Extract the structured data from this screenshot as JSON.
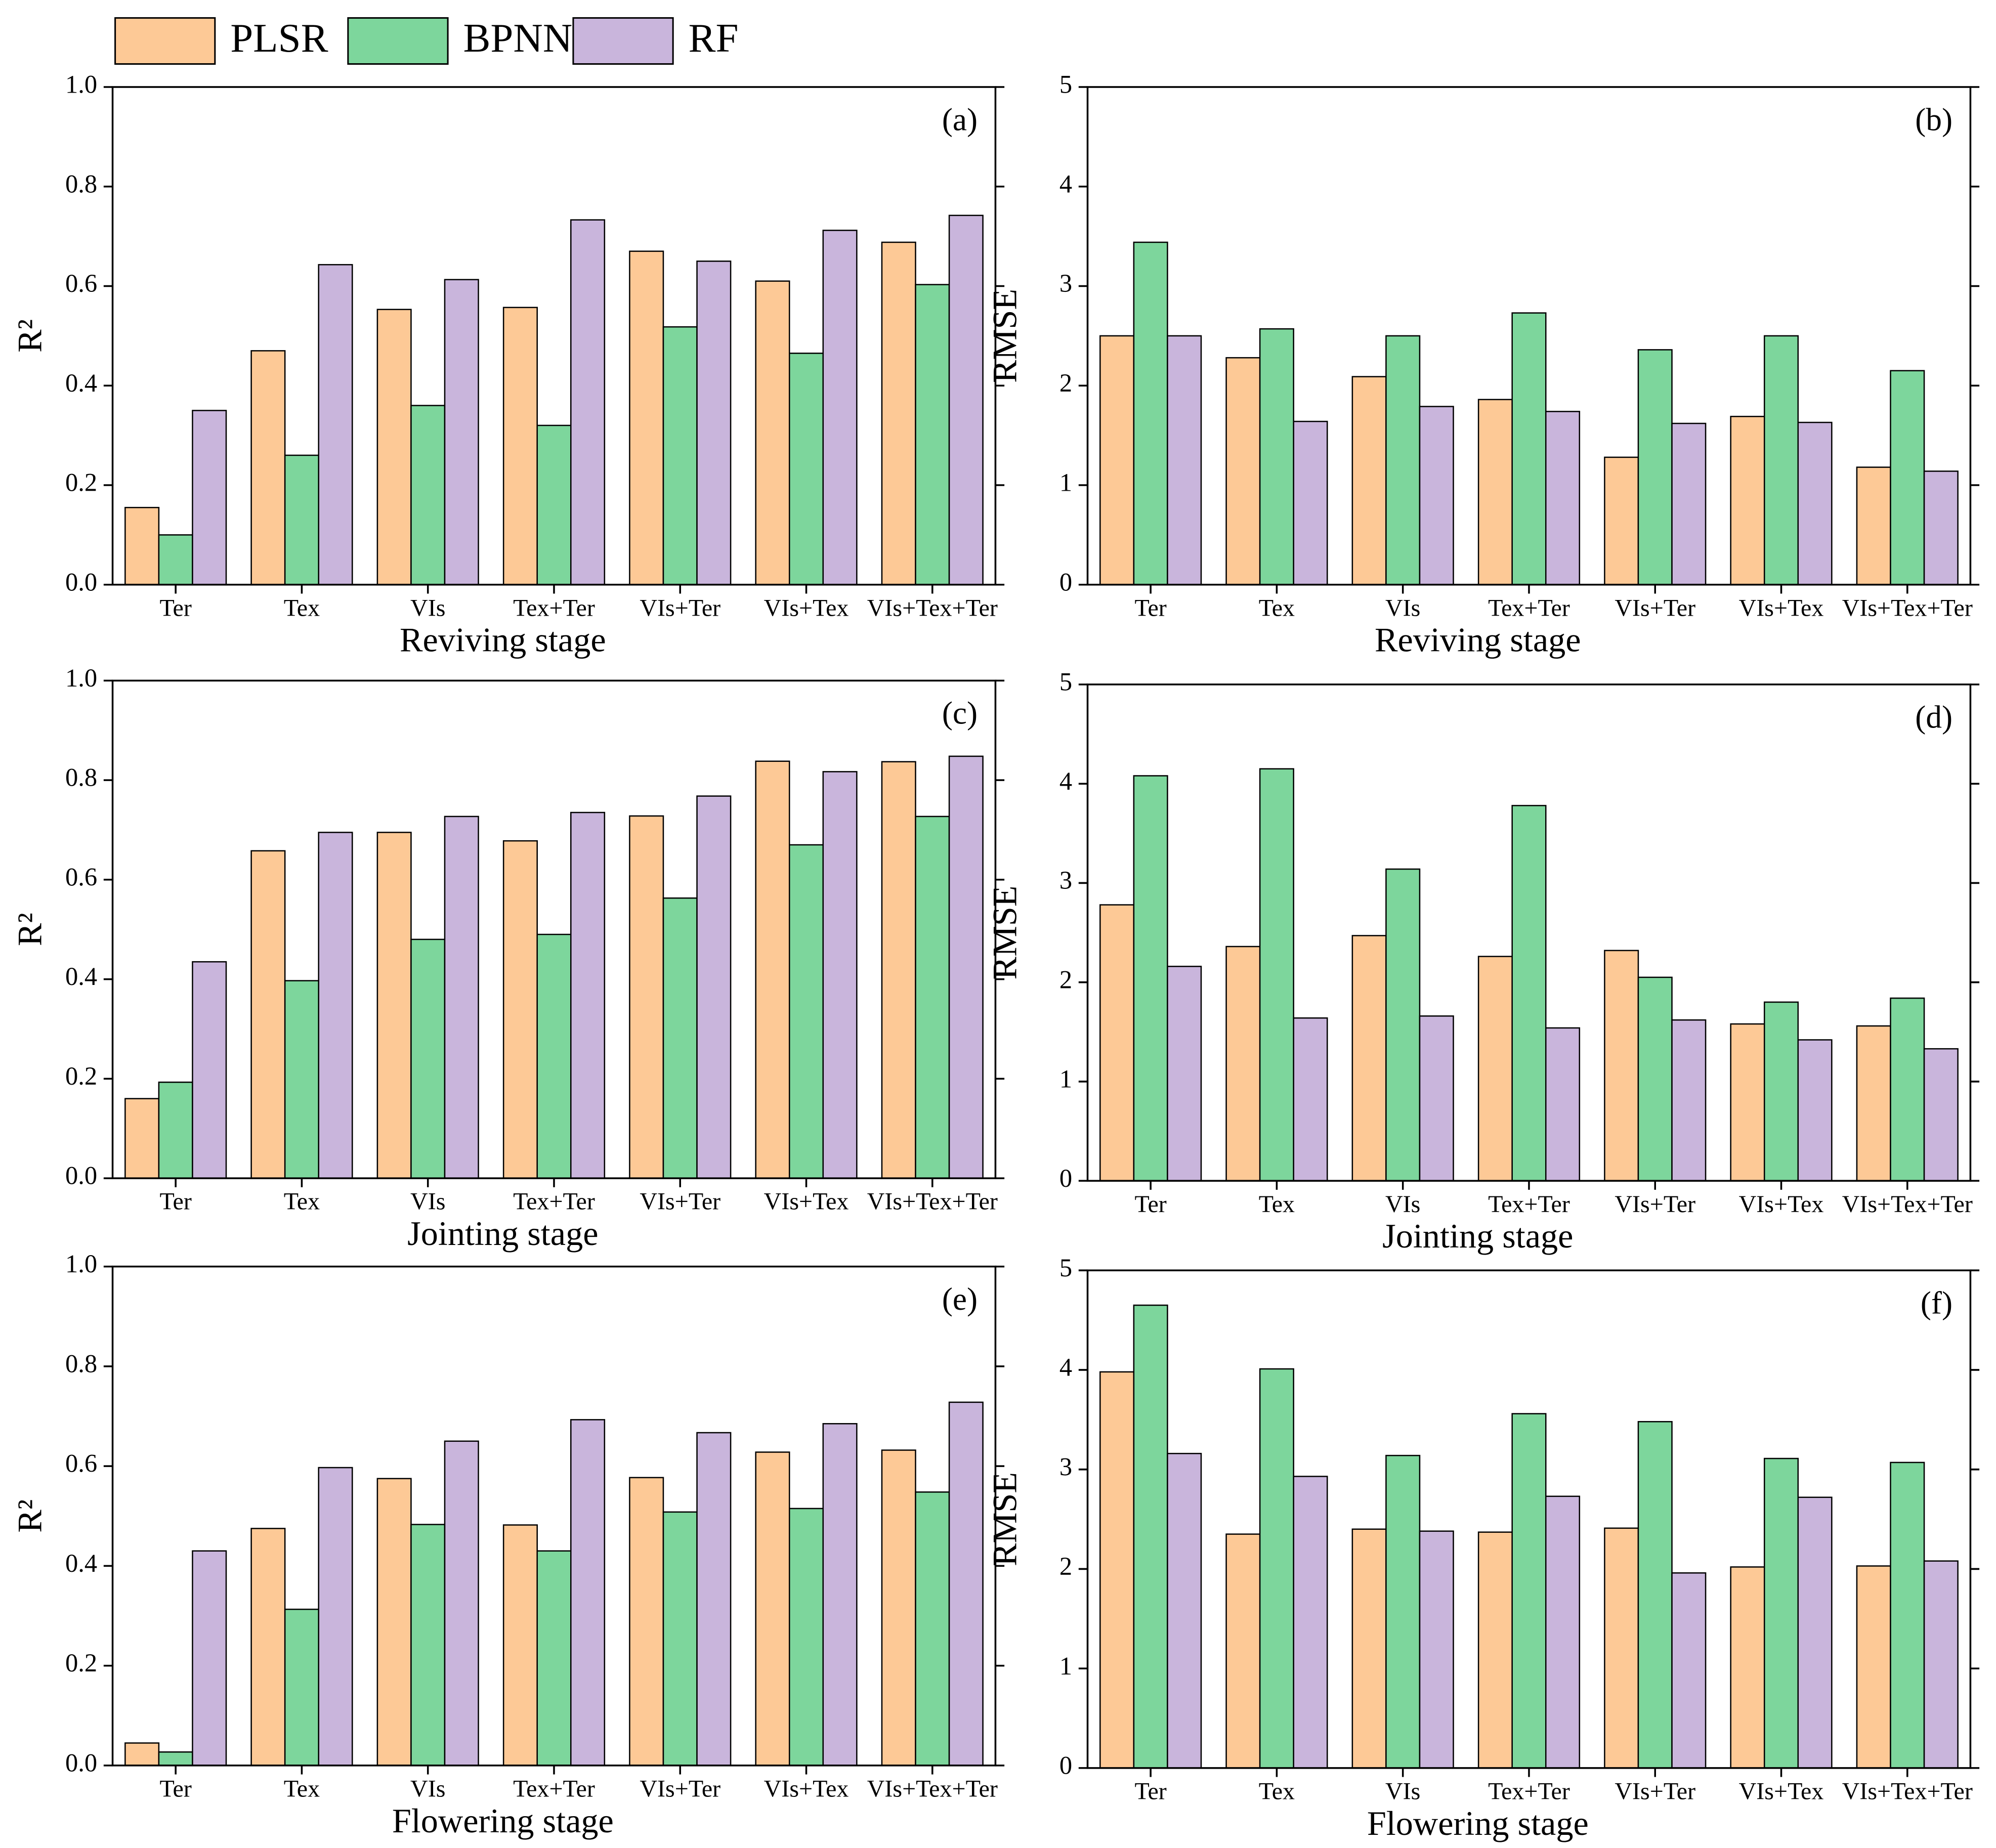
{
  "chart_data": [
    {
      "type": "bar",
      "label": "(a)",
      "xlabel": "Reviving stage",
      "ylabel": "R²",
      "categories": [
        "Ter",
        "Tex",
        "VIs",
        "Tex+Ter",
        "VIs+Ter",
        "VIs+Tex",
        "VIs+Tex+Ter"
      ],
      "series": [
        {
          "name": "PLSR",
          "color": "#fdc996",
          "values": [
            0.155,
            0.47,
            0.553,
            0.557,
            0.67,
            0.61,
            0.688
          ]
        },
        {
          "name": "BPNN",
          "color": "#7dd69c",
          "values": [
            0.1,
            0.26,
            0.36,
            0.32,
            0.518,
            0.465,
            0.603
          ]
        },
        {
          "name": "RF",
          "color": "#c9b5dc",
          "values": [
            0.35,
            0.643,
            0.613,
            0.733,
            0.65,
            0.712,
            0.742
          ]
        }
      ],
      "ylim": [
        0,
        1
      ],
      "yticks": [
        {
          "value": 0,
          "label": "0.0"
        },
        0.2,
        0.4,
        0.6,
        0.8,
        {
          "value": 1,
          "label": "1.0"
        }
      ]
    },
    {
      "type": "bar",
      "label": "(b)",
      "xlabel": "Reviving stage",
      "ylabel": "RMSE",
      "categories": [
        "Ter",
        "Tex",
        "VIs",
        "Tex+Ter",
        "VIs+Ter",
        "VIs+Tex",
        "VIs+Tex+Ter"
      ],
      "series": [
        {
          "name": "PLSR",
          "color": "#fdc996",
          "values": [
            2.5,
            2.28,
            2.09,
            1.86,
            1.28,
            1.69,
            1.18
          ]
        },
        {
          "name": "BPNN",
          "color": "#7dd69c",
          "values": [
            3.44,
            2.57,
            2.5,
            2.73,
            2.36,
            2.5,
            2.15
          ]
        },
        {
          "name": "RF",
          "color": "#c9b5dc",
          "values": [
            2.5,
            1.64,
            1.79,
            1.74,
            1.62,
            1.63,
            1.14
          ]
        }
      ],
      "ylim": [
        0,
        5
      ],
      "yticks": [
        0,
        1,
        2,
        3,
        4,
        5
      ]
    },
    {
      "type": "bar",
      "label": "(c)",
      "xlabel": "Jointing stage",
      "ylabel": "R²",
      "categories": [
        "Ter",
        "Tex",
        "VIs",
        "Tex+Ter",
        "VIs+Ter",
        "VIs+Tex",
        "VIs+Tex+Ter"
      ],
      "series": [
        {
          "name": "PLSR",
          "color": "#fdc996",
          "values": [
            0.16,
            0.658,
            0.695,
            0.678,
            0.728,
            0.838,
            0.837
          ]
        },
        {
          "name": "BPNN",
          "color": "#7dd69c",
          "values": [
            0.193,
            0.397,
            0.48,
            0.49,
            0.563,
            0.67,
            0.727
          ]
        },
        {
          "name": "RF",
          "color": "#c9b5dc",
          "values": [
            0.435,
            0.695,
            0.727,
            0.735,
            0.768,
            0.817,
            0.848
          ]
        }
      ],
      "ylim": [
        0,
        1
      ],
      "yticks": [
        {
          "value": 0,
          "label": "0.0"
        },
        0.2,
        0.4,
        0.6,
        0.8,
        {
          "value": 1,
          "label": "1.0"
        }
      ]
    },
    {
      "type": "bar",
      "label": "(d)",
      "xlabel": "Jointing stage",
      "ylabel": "RMSE",
      "categories": [
        "Ter",
        "Tex",
        "VIs",
        "Tex+Ter",
        "VIs+Ter",
        "VIs+Tex",
        "VIs+Tex+Ter"
      ],
      "series": [
        {
          "name": "PLSR",
          "color": "#fdc996",
          "values": [
            2.78,
            2.36,
            2.47,
            2.26,
            2.32,
            1.58,
            1.56
          ]
        },
        {
          "name": "BPNN",
          "color": "#7dd69c",
          "values": [
            4.08,
            4.15,
            3.14,
            3.78,
            2.05,
            1.8,
            1.84
          ]
        },
        {
          "name": "RF",
          "color": "#c9b5dc",
          "values": [
            2.16,
            1.64,
            1.66,
            1.54,
            1.62,
            1.42,
            1.33
          ]
        }
      ],
      "ylim": [
        0,
        5
      ],
      "yticks": [
        0,
        1,
        2,
        3,
        4,
        5
      ]
    },
    {
      "type": "bar",
      "label": "(e)",
      "xlabel": "Flowering stage",
      "ylabel": "R²",
      "categories": [
        "Ter",
        "Tex",
        "VIs",
        "Tex+Ter",
        "VIs+Ter",
        "VIs+Tex",
        "VIs+Tex+Ter"
      ],
      "series": [
        {
          "name": "PLSR",
          "color": "#fdc996",
          "values": [
            0.045,
            0.475,
            0.575,
            0.482,
            0.577,
            0.628,
            0.632
          ]
        },
        {
          "name": "BPNN",
          "color": "#7dd69c",
          "values": [
            0.027,
            0.313,
            0.483,
            0.43,
            0.508,
            0.515,
            0.548
          ]
        },
        {
          "name": "RF",
          "color": "#c9b5dc",
          "values": [
            0.43,
            0.597,
            0.65,
            0.693,
            0.667,
            0.685,
            0.728
          ]
        }
      ],
      "ylim": [
        0,
        1
      ],
      "yticks": [
        {
          "value": 0,
          "label": "0.0"
        },
        0.2,
        0.4,
        0.6,
        0.8,
        {
          "value": 1,
          "label": "1.0"
        }
      ]
    },
    {
      "type": "bar",
      "label": "(f)",
      "xlabel": "Flowering stage",
      "ylabel": "RMSE",
      "categories": [
        "Ter",
        "Tex",
        "VIs",
        "Tex+Ter",
        "VIs+Ter",
        "VIs+Tex",
        "VIs+Tex+Ter"
      ],
      "series": [
        {
          "name": "PLSR",
          "color": "#fdc996",
          "values": [
            3.98,
            2.35,
            2.4,
            2.37,
            2.41,
            2.02,
            2.03
          ]
        },
        {
          "name": "BPNN",
          "color": "#7dd69c",
          "values": [
            4.65,
            4.01,
            3.14,
            3.56,
            3.48,
            3.11,
            3.07
          ]
        },
        {
          "name": "RF",
          "color": "#c9b5dc",
          "values": [
            3.16,
            2.93,
            2.38,
            2.73,
            1.96,
            2.72,
            2.08
          ]
        }
      ],
      "ylim": [
        0,
        5
      ],
      "yticks": [
        0,
        1,
        2,
        3,
        4,
        5
      ]
    }
  ]
}
